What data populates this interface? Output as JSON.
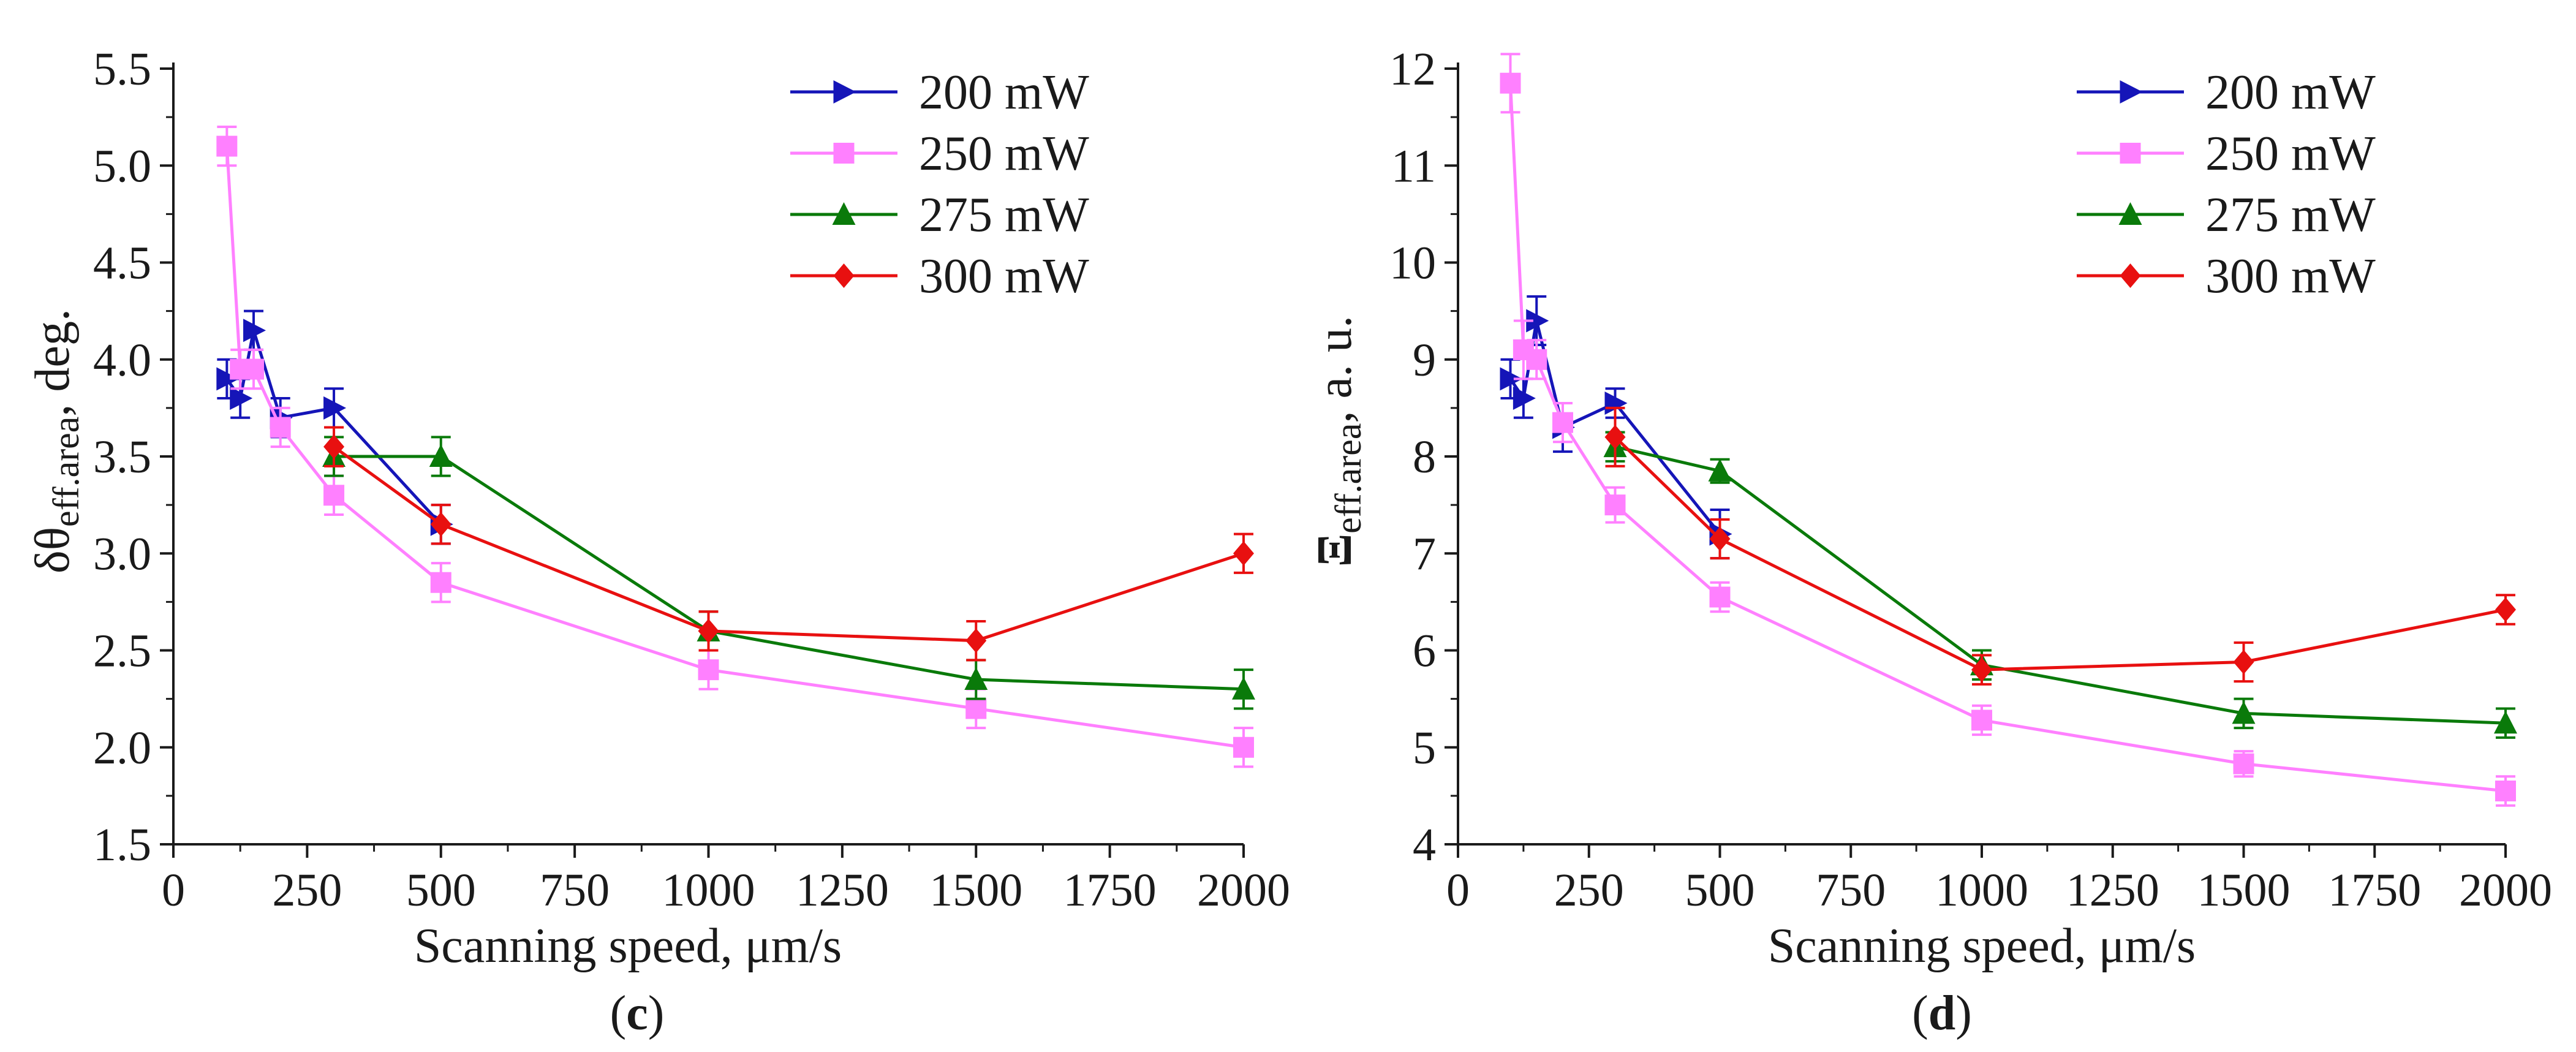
{
  "chart_data": [
    {
      "type": "line",
      "panel_label": "c",
      "xlabel": "Scanning speed, μm/s",
      "ylabel_main": "δθ",
      "ylabel_sub": "eff.area",
      "ylabel_tail": ", deg.",
      "xlim": [
        0,
        2000
      ],
      "ylim": [
        1.5,
        5.5
      ],
      "xticks": [
        0,
        250,
        500,
        750,
        1000,
        1250,
        1500,
        1750,
        2000
      ],
      "yticks": [
        1.5,
        2.0,
        2.5,
        3.0,
        3.5,
        4.0,
        4.5,
        5.0,
        5.5
      ],
      "ytick_labels": [
        "1.5",
        "2.0",
        "2.5",
        "3.0",
        "3.5",
        "4.0",
        "4.5",
        "5.0",
        "5.5"
      ],
      "legend_position": "top-right",
      "series": [
        {
          "name": "200 mW",
          "color": "#1515b8",
          "marker": "triangle-right",
          "x": [
            100,
            125,
            150,
            200,
            300,
            500
          ],
          "y": [
            3.9,
            3.8,
            4.15,
            3.7,
            3.75,
            3.15
          ],
          "err": [
            0.1,
            0.1,
            0.1,
            0.1,
            0.1,
            0.1
          ]
        },
        {
          "name": "250 mW",
          "color": "#ff80ff",
          "marker": "square",
          "x": [
            100,
            125,
            150,
            200,
            300,
            500,
            1000,
            1500,
            2000
          ],
          "y": [
            5.1,
            3.95,
            3.95,
            3.65,
            3.3,
            2.85,
            2.4,
            2.2,
            2.0
          ],
          "err": [
            0.1,
            0.1,
            0.1,
            0.1,
            0.1,
            0.1,
            0.1,
            0.1,
            0.1
          ]
        },
        {
          "name": "275 mW",
          "color": "#0a7a0a",
          "marker": "triangle-up",
          "x": [
            300,
            500,
            1000,
            1500,
            2000
          ],
          "y": [
            3.5,
            3.5,
            2.6,
            2.35,
            2.3
          ],
          "err": [
            0.1,
            0.1,
            0.1,
            0.1,
            0.1
          ]
        },
        {
          "name": "300 mW",
          "color": "#e81010",
          "marker": "diamond",
          "x": [
            300,
            500,
            1000,
            1500,
            2000
          ],
          "y": [
            3.55,
            3.15,
            2.6,
            2.55,
            3.0
          ],
          "err": [
            0.1,
            0.1,
            0.1,
            0.1,
            0.1
          ]
        }
      ]
    },
    {
      "type": "line",
      "panel_label": "d",
      "xlabel": "Scanning speed, μm/s",
      "ylabel_main": "Ξ",
      "ylabel_sub": "eff.area",
      "ylabel_tail": ", a. u.",
      "xlim": [
        0,
        2000
      ],
      "ylim": [
        4,
        12
      ],
      "xticks": [
        0,
        250,
        500,
        750,
        1000,
        1250,
        1500,
        1750,
        2000
      ],
      "yticks": [
        4,
        5,
        6,
        7,
        8,
        9,
        10,
        11,
        12
      ],
      "ytick_labels": [
        "4",
        "5",
        "6",
        "7",
        "8",
        "9",
        "10",
        "11",
        "12"
      ],
      "legend_position": "top-right",
      "series": [
        {
          "name": "200 mW",
          "color": "#1515b8",
          "marker": "triangle-right",
          "x": [
            100,
            125,
            150,
            200,
            300,
            500
          ],
          "y": [
            8.8,
            8.6,
            9.4,
            8.3,
            8.55,
            7.2
          ],
          "err": [
            0.2,
            0.2,
            0.25,
            0.25,
            0.15,
            0.25
          ]
        },
        {
          "name": "250 mW",
          "color": "#ff80ff",
          "marker": "square",
          "x": [
            100,
            125,
            150,
            200,
            300,
            500,
            1000,
            1500,
            2000
          ],
          "y": [
            11.85,
            9.1,
            9.0,
            8.35,
            7.5,
            6.55,
            5.28,
            4.83,
            4.55
          ],
          "err": [
            0.3,
            0.3,
            0.2,
            0.2,
            0.18,
            0.15,
            0.15,
            0.13,
            0.15
          ]
        },
        {
          "name": "275 mW",
          "color": "#0a7a0a",
          "marker": "triangle-up",
          "x": [
            300,
            500,
            1000,
            1500,
            2000
          ],
          "y": [
            8.1,
            7.85,
            5.85,
            5.35,
            5.25
          ],
          "err": [
            0.15,
            0.12,
            0.15,
            0.15,
            0.15
          ]
        },
        {
          "name": "300 mW",
          "color": "#e81010",
          "marker": "diamond",
          "x": [
            300,
            500,
            1000,
            1500,
            2000
          ],
          "y": [
            8.2,
            7.15,
            5.8,
            5.88,
            6.42
          ],
          "err": [
            0.3,
            0.2,
            0.15,
            0.2,
            0.15
          ]
        }
      ]
    }
  ]
}
